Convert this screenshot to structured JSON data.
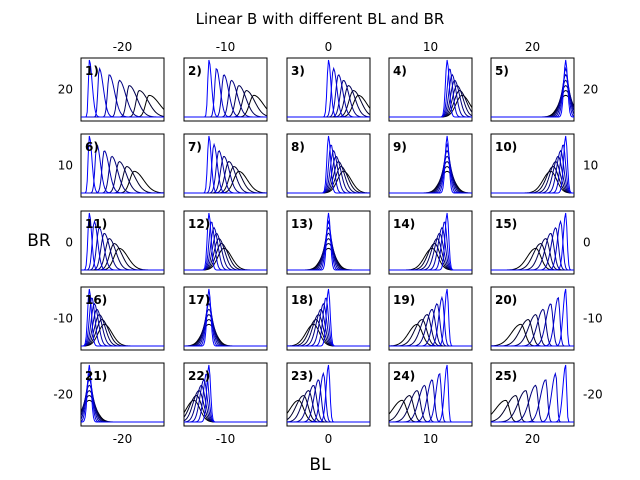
{
  "chart_data": {
    "type": "line",
    "title": "Linear B with different BL and BR",
    "xlabel": "BL",
    "ylabel": "BR",
    "grid": false,
    "bl_values": [
      -20,
      -10,
      0,
      10,
      20
    ],
    "br_values": [
      20,
      10,
      0,
      -10,
      -20
    ],
    "col_labels": [
      "-20",
      "-10",
      "0",
      "10",
      "20"
    ],
    "row_labels": [
      "20",
      "10",
      "0",
      "-10",
      "-20"
    ],
    "panel_labels": [
      "1)",
      "2)",
      "3)",
      "4)",
      "5)",
      "6)",
      "7)",
      "8)",
      "9)",
      "10)",
      "11)",
      "12)",
      "13)",
      "14)",
      "15)",
      "16)",
      "17)",
      "18)",
      "19)",
      "20)",
      "21)",
      "22)",
      "23)",
      "24)",
      "25)"
    ],
    "series_colors": {
      "start": "#0000ff",
      "end": "#000000"
    },
    "curves_per_panel": 7,
    "x_domain": [
      -25,
      25
    ]
  }
}
